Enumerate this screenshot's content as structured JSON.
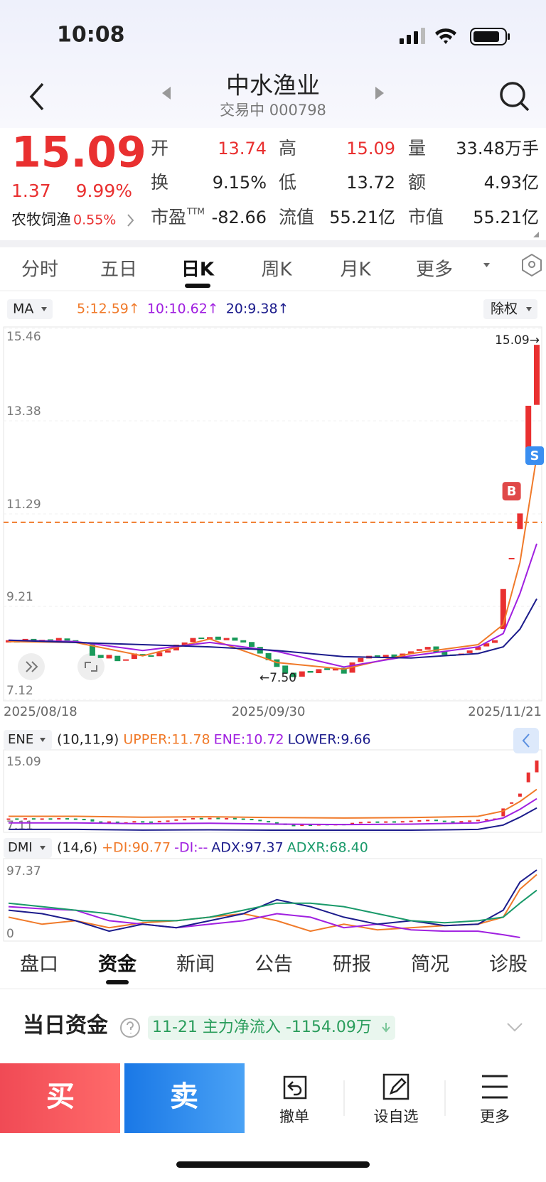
{
  "status_bar": {
    "time": "10:08"
  },
  "header": {
    "title": "中水渔业",
    "subtitle": "交易中 000798"
  },
  "quote": {
    "price": "15.09",
    "change": "1.37",
    "change_pct": "9.99%",
    "sector": "农牧饲渔",
    "sector_pct": "0.55%",
    "fields": [
      {
        "label": "开",
        "value": "13.74",
        "color": "#e93030"
      },
      {
        "label": "高",
        "value": "15.09",
        "color": "#e93030"
      },
      {
        "label": "量",
        "value": "33.48万手"
      },
      {
        "label": "换",
        "value": "9.15%"
      },
      {
        "label": "低",
        "value": "13.72"
      },
      {
        "label": "额",
        "value": "4.93亿"
      },
      {
        "label": "市盈",
        "sup": "TTM",
        "value": "-82.66"
      },
      {
        "label": "流值",
        "value": "55.21亿"
      },
      {
        "label": "市值",
        "value": "55.21亿"
      }
    ]
  },
  "tabs": {
    "items": [
      "分时",
      "五日",
      "日K",
      "周K",
      "月K",
      "更多"
    ],
    "active": 2
  },
  "chart_data": [
    {
      "type": "candlestick",
      "indicator": "MA",
      "adjust": "除权",
      "categories": [
        "2025/08/18",
        null,
        null,
        null,
        null,
        null,
        null,
        null,
        null,
        null,
        null,
        null,
        null,
        null,
        null,
        null,
        null,
        null,
        null,
        null,
        null,
        null,
        null,
        null,
        null,
        null,
        null,
        null,
        null,
        null,
        null,
        "2025/09/30",
        null,
        null,
        null,
        null,
        null,
        null,
        null,
        null,
        null,
        null,
        null,
        null,
        null,
        null,
        null,
        null,
        null,
        null,
        null,
        null,
        null,
        null,
        null,
        null,
        null,
        null,
        null,
        null,
        null,
        null,
        null,
        "2025/11/21"
      ],
      "open": [
        8.4,
        8.46,
        8.41,
        8.48,
        8.43,
        8.47,
        8.44,
        8.49,
        8.45,
        8.41,
        8.36,
        8.12,
        8.04,
        8.1,
        7.99,
        8.03,
        8.14,
        8.11,
        8.09,
        8.17,
        8.22,
        8.34,
        8.41,
        8.51,
        8.47,
        8.53,
        8.45,
        8.51,
        8.45,
        8.41,
        8.3,
        8.16,
        8.02,
        7.88,
        7.72,
        7.63,
        7.76,
        7.71,
        7.82,
        7.77,
        7.83,
        7.72,
        7.96,
        8.04,
        8.11,
        8.07,
        8.13,
        8.07,
        8.14,
        8.21,
        8.24,
        8.31,
        8.2,
        8.13,
        8.11,
        8.16,
        8.23,
        8.31,
        8.39,
        8.7,
        10.29,
        10.95,
        12.6,
        13.74
      ],
      "close": [
        8.45,
        8.4,
        8.48,
        8.44,
        8.46,
        8.42,
        8.5,
        8.44,
        8.4,
        8.38,
        8.1,
        8.05,
        8.12,
        7.98,
        8.02,
        8.15,
        8.1,
        8.08,
        8.18,
        8.22,
        8.35,
        8.4,
        8.5,
        8.48,
        8.52,
        8.46,
        8.5,
        8.44,
        8.4,
        8.3,
        8.15,
        8.0,
        7.85,
        7.7,
        7.62,
        7.75,
        7.72,
        7.8,
        7.78,
        7.82,
        7.7,
        7.95,
        8.05,
        8.1,
        8.08,
        8.12,
        8.06,
        8.15,
        8.2,
        8.25,
        8.3,
        8.18,
        8.12,
        8.1,
        8.15,
        8.22,
        8.3,
        8.38,
        8.45,
        9.6,
        10.3,
        11.3,
        13.72,
        15.09
      ],
      "up_color": "#e93030",
      "down_color": "#1a9a5a",
      "series": [
        {
          "label": "5:12.59↑",
          "color": "#f07a2a",
          "x": [
            0,
            8,
            16,
            24,
            32,
            40,
            48,
            56,
            59,
            61,
            63
          ],
          "values": [
            8.42,
            8.4,
            8.1,
            8.48,
            7.95,
            7.8,
            8.15,
            8.35,
            8.8,
            10.2,
            12.59
          ]
        },
        {
          "label": "10:10.62↑",
          "color": "#a020e0",
          "x": [
            0,
            8,
            16,
            24,
            32,
            40,
            48,
            56,
            59,
            61,
            63
          ],
          "values": [
            8.45,
            8.42,
            8.22,
            8.4,
            8.2,
            7.85,
            8.1,
            8.3,
            8.6,
            9.5,
            10.62
          ]
        },
        {
          "label": "20:9.38↑",
          "color": "#1c1c8c",
          "x": [
            0,
            8,
            16,
            24,
            32,
            40,
            48,
            56,
            59,
            61,
            63
          ],
          "values": [
            8.45,
            8.4,
            8.35,
            8.3,
            8.22,
            8.08,
            8.05,
            8.15,
            8.3,
            8.7,
            9.38
          ]
        }
      ],
      "ylim": [
        7.12,
        15.46
      ],
      "yticks": [
        15.46,
        13.38,
        11.29,
        9.21,
        7.12
      ],
      "grid": true,
      "ref_line": {
        "value": 11.1,
        "color": "#f07a2a"
      },
      "annotations": [
        {
          "label": "15.09→",
          "x": 63,
          "value": 15.09
        },
        {
          "label": "←7.50",
          "x": 34,
          "value": 7.5
        }
      ],
      "markers": [
        {
          "label": "B",
          "x": 60,
          "value": 11.8,
          "color": "#e04848"
        },
        {
          "label": "S",
          "x": 63,
          "value": 12.6,
          "color": "#3a8ef0"
        }
      ]
    },
    {
      "type": "line",
      "indicator": "ENE",
      "params": "(10,11,9)",
      "xlim": [
        0,
        63
      ],
      "ylim": [
        7.11,
        15.09
      ],
      "yticks": [
        15.09,
        7.11
      ],
      "series": [
        {
          "label": "UPPER:11.78",
          "color": "#f07a2a",
          "x": [
            0,
            8,
            16,
            24,
            32,
            40,
            48,
            56,
            59,
            61,
            63
          ],
          "values": [
            8.7,
            8.7,
            8.6,
            8.65,
            8.55,
            8.5,
            8.55,
            8.7,
            9.3,
            10.4,
            11.78
          ]
        },
        {
          "label": "ENE:10.72",
          "color": "#a020e0",
          "x": [
            0,
            8,
            16,
            24,
            32,
            40,
            48,
            56,
            59,
            61,
            63
          ],
          "values": [
            7.95,
            7.95,
            7.85,
            7.9,
            7.8,
            7.75,
            7.8,
            7.95,
            8.5,
            9.5,
            10.72
          ]
        },
        {
          "label": "LOWER:9.66",
          "color": "#1c1c8c",
          "x": [
            0,
            8,
            16,
            24,
            32,
            40,
            48,
            56,
            59,
            61,
            63
          ],
          "values": [
            7.2,
            7.2,
            7.12,
            7.15,
            7.11,
            7.11,
            7.11,
            7.2,
            7.7,
            8.6,
            9.66
          ]
        }
      ]
    },
    {
      "type": "line",
      "indicator": "DMI",
      "params": "(14,6)",
      "xlim": [
        0,
        63
      ],
      "ylim": [
        0,
        97.37
      ],
      "yticks": [
        97.37,
        0
      ],
      "series": [
        {
          "label": "+DI:90.77",
          "color": "#f07a2a",
          "x": [
            0,
            4,
            8,
            12,
            16,
            20,
            24,
            28,
            32,
            36,
            40,
            44,
            48,
            52,
            56,
            59,
            61,
            63
          ],
          "values": [
            30,
            20,
            25,
            15,
            22,
            25,
            30,
            35,
            25,
            10,
            20,
            12,
            15,
            18,
            20,
            30,
            70,
            90.77
          ]
        },
        {
          "label": "-DI:--",
          "color": "#a020e0",
          "x": [
            0,
            4,
            8,
            12,
            16,
            20,
            24,
            28,
            32,
            36,
            40,
            44,
            48,
            52,
            56,
            59,
            61,
            63
          ],
          "values": [
            45,
            42,
            40,
            25,
            20,
            15,
            20,
            25,
            35,
            30,
            15,
            20,
            12,
            10,
            10,
            5,
            1,
            null
          ]
        },
        {
          "label": "ADX:97.37",
          "color": "#1c1c8c",
          "x": [
            0,
            4,
            8,
            12,
            16,
            20,
            24,
            28,
            32,
            36,
            40,
            44,
            48,
            52,
            56,
            59,
            61,
            63
          ],
          "values": [
            40,
            35,
            25,
            10,
            20,
            15,
            25,
            35,
            55,
            45,
            30,
            20,
            25,
            18,
            20,
            40,
            80,
            97.37
          ]
        },
        {
          "label": "ADXR:68.40",
          "color": "#1a9a6a",
          "x": [
            0,
            4,
            8,
            12,
            16,
            20,
            24,
            28,
            32,
            36,
            40,
            44,
            48,
            52,
            56,
            59,
            61,
            63
          ],
          "values": [
            50,
            45,
            40,
            35,
            25,
            25,
            30,
            40,
            50,
            50,
            45,
            35,
            25,
            22,
            25,
            30,
            50,
            68.4
          ]
        }
      ]
    }
  ],
  "bottom_tabs": {
    "items": [
      "盘口",
      "资金",
      "新闻",
      "公告",
      "研报",
      "简况",
      "诊股"
    ],
    "active": 1
  },
  "capital": {
    "title": "当日资金",
    "summary": "11-21 主力净流入 -1154.09万"
  },
  "actions": {
    "buy": "买",
    "sell": "卖",
    "items": [
      "撤单",
      "设自选",
      "更多"
    ]
  }
}
